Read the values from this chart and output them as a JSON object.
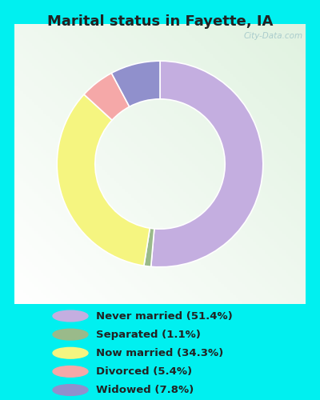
{
  "title": "Marital status in Fayette, IA",
  "title_fontsize": 13,
  "bg_cyan": "#00f0f0",
  "chart_bg_color": "#e8f5ee",
  "slices": [
    51.4,
    1.1,
    34.3,
    5.4,
    7.8
  ],
  "colors": [
    "#c4aee0",
    "#9aba8a",
    "#f5f580",
    "#f5a8a8",
    "#9090cc"
  ],
  "labels": [
    "Never married (51.4%)",
    "Separated (1.1%)",
    "Now married (34.3%)",
    "Divorced (5.4%)",
    "Widowed (7.8%)"
  ],
  "legend_fontsize": 9.5,
  "donut_inner_r": 0.58,
  "donut_outer_r": 0.92,
  "watermark": "City-Data.com",
  "watermark_color": "#aacccc"
}
